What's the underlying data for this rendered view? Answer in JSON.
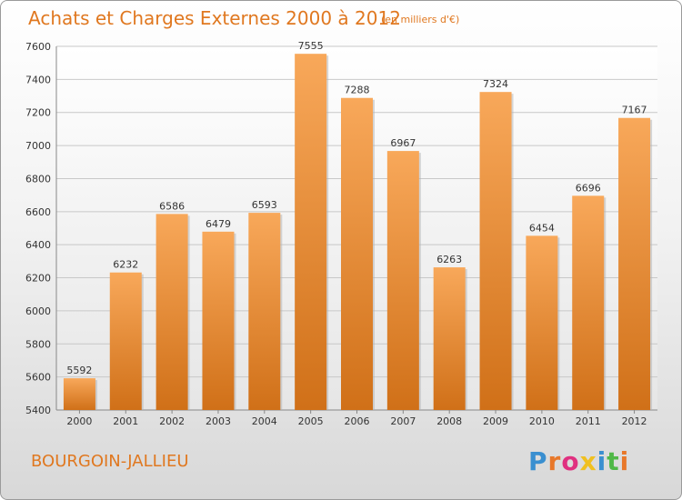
{
  "header": {
    "title": "Achats et Charges Externes 2000 à 2012",
    "subtitle": "(en milliers d'€)"
  },
  "footer": {
    "location": "BOURGOIN-JALLIEU",
    "logo_text": "Proxiti",
    "logo_colors": [
      "#3a8fd0",
      "#e8782a",
      "#e03080",
      "#f0c020",
      "#3a8fd0",
      "#50b848",
      "#e8782a"
    ]
  },
  "colors": {
    "bar_top": "#f8a85a",
    "bar_bottom": "#d07018",
    "title": "#e07820"
  },
  "chart_data": {
    "type": "bar",
    "title": "Achats et Charges Externes 2000 à 2012",
    "subtitle": "(en milliers d'€)",
    "categories": [
      "2000",
      "2001",
      "2002",
      "2003",
      "2004",
      "2005",
      "2006",
      "2007",
      "2008",
      "2009",
      "2010",
      "2011",
      "2012"
    ],
    "values": [
      5592,
      6232,
      6586,
      6479,
      6593,
      7555,
      7288,
      6967,
      6263,
      7324,
      6454,
      6696,
      7167
    ],
    "xlabel": "",
    "ylabel": "",
    "ylim": [
      5400,
      7600
    ],
    "yticks": [
      5400,
      5600,
      5800,
      6000,
      6200,
      6400,
      6600,
      6800,
      7000,
      7200,
      7400,
      7600
    ],
    "grid": true,
    "data_labels": true
  }
}
